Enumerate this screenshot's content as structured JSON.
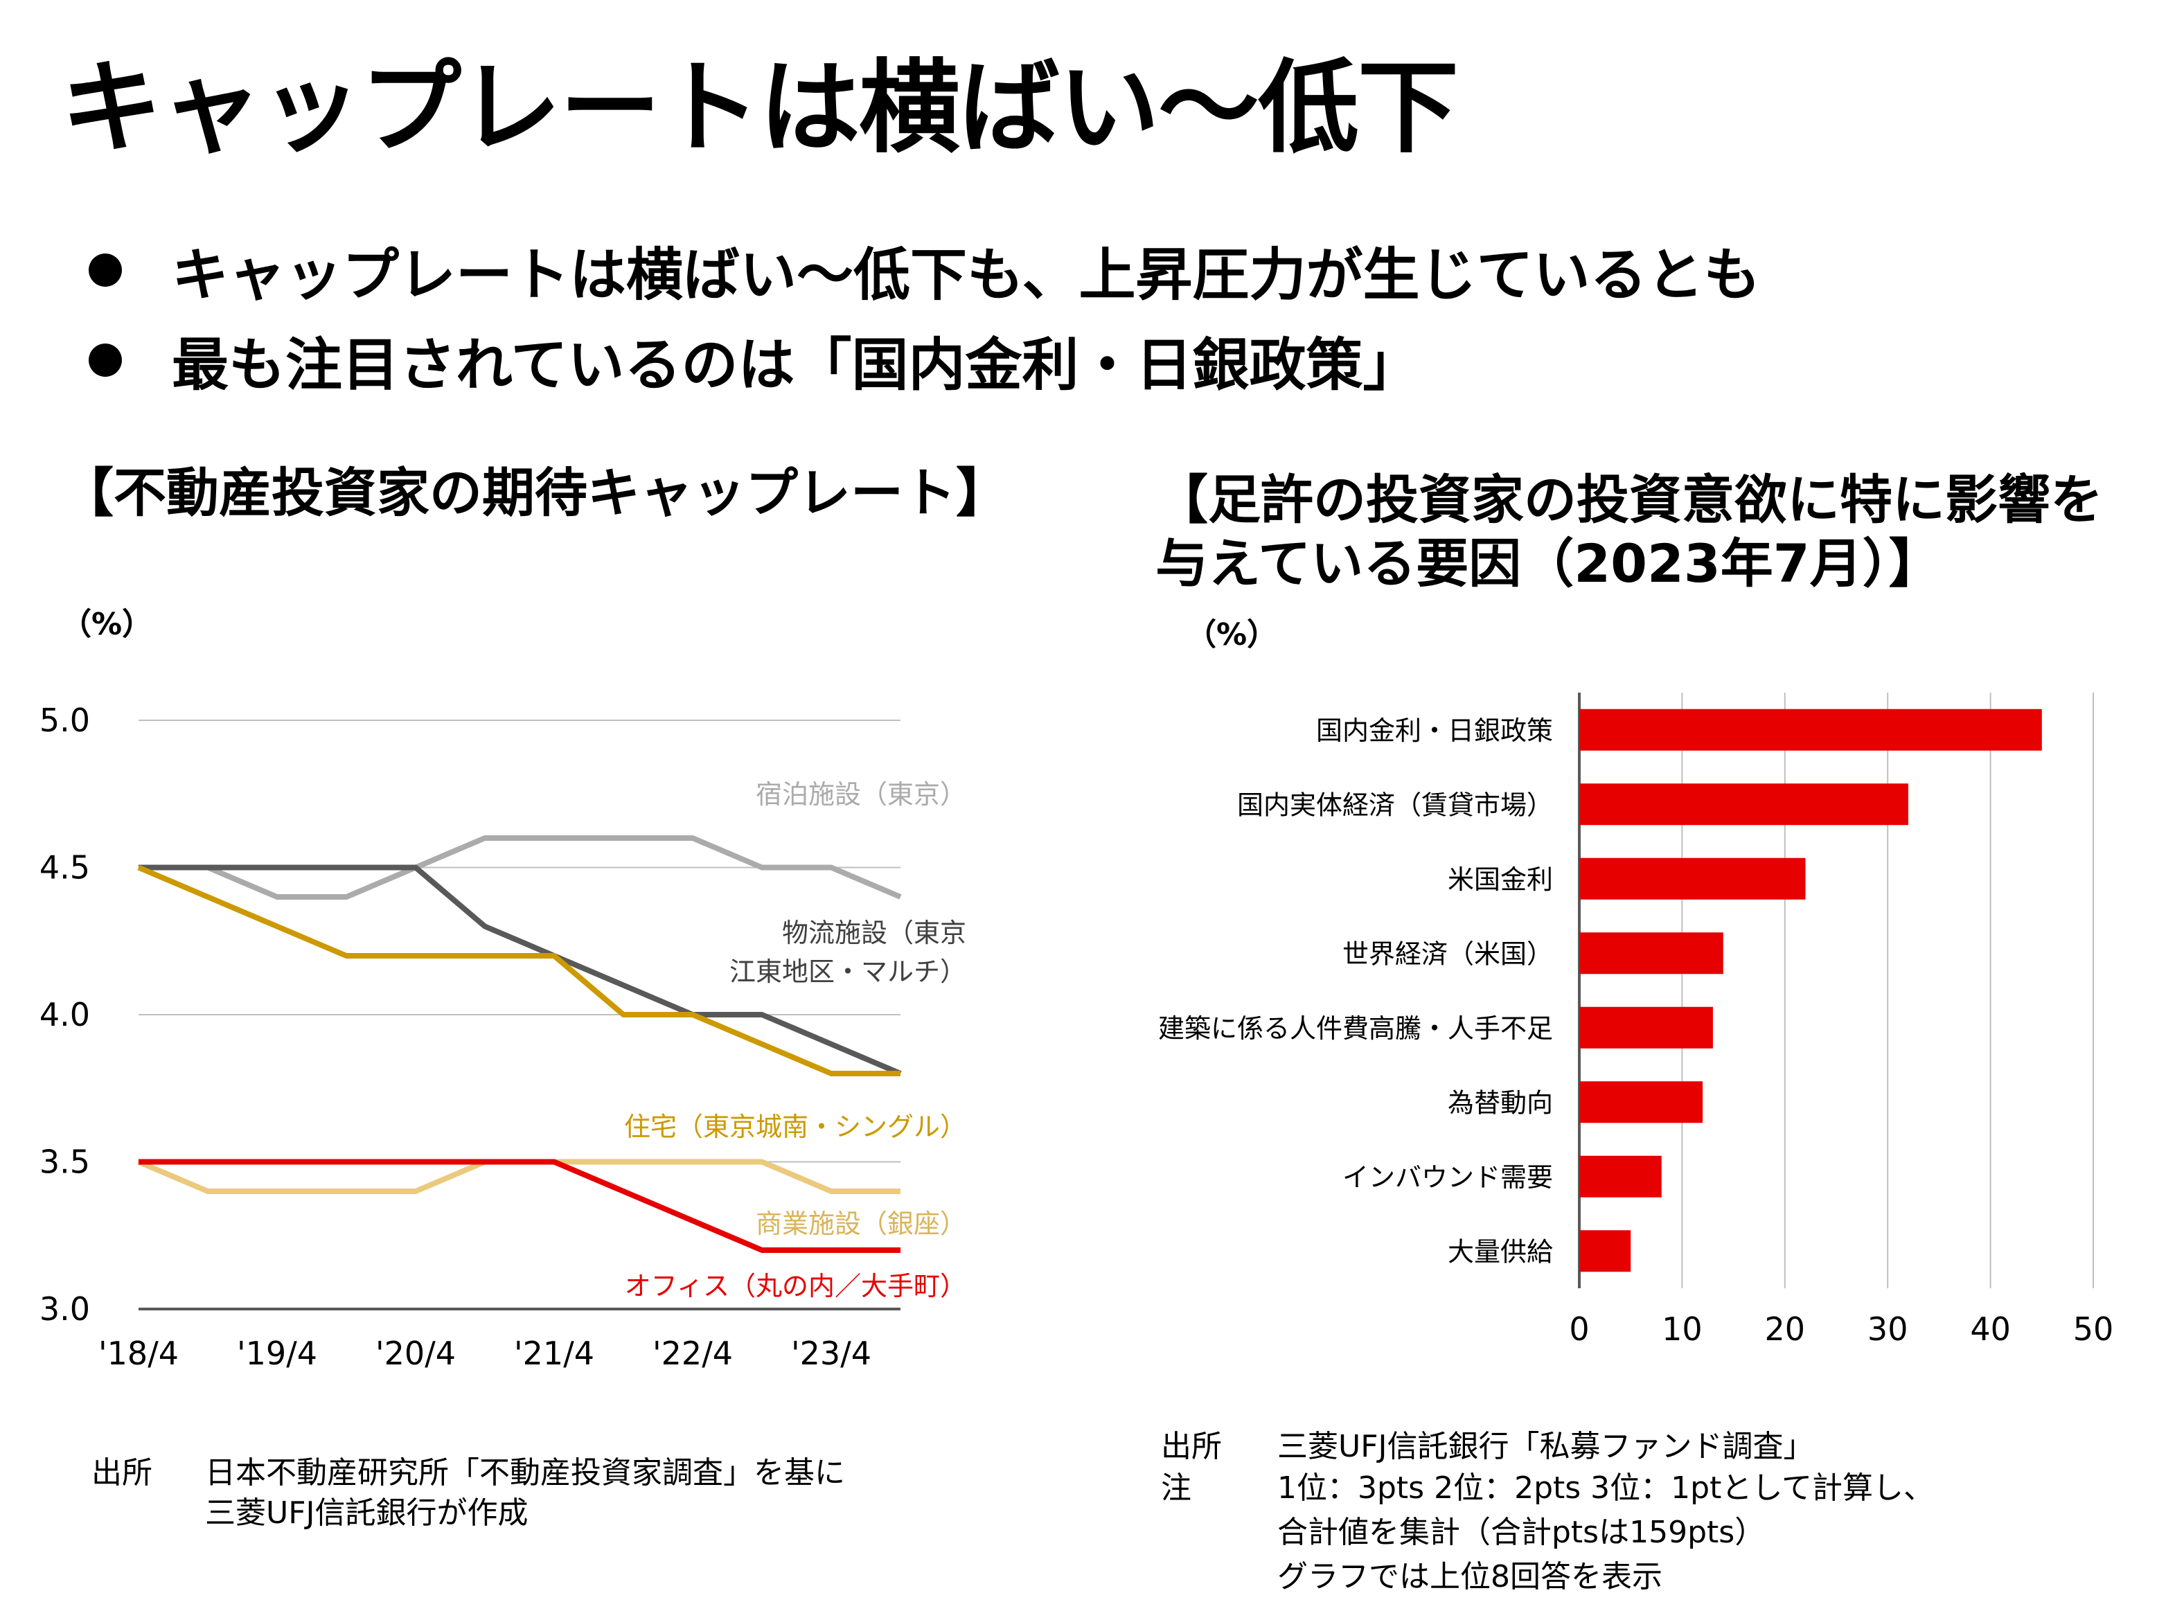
{
  "page": {
    "title": "キャップレートは横ばい～低下",
    "bullets": [
      "キャップレートは横ばい～低下も、上昇圧力が生じているとも",
      "最も注目されているのは「国内金利・日銀政策」"
    ]
  },
  "left_chart": {
    "section_title": "【不動産投資家の期待キャップレート】",
    "unit": "（%）",
    "source_label": "出所",
    "source_lines": [
      "日本不動産研究所「不動産投資家調査」を基に",
      "三菱UFJ信託銀行が作成"
    ]
  },
  "right_chart": {
    "section_title_lines": [
      "【足許の投資家の投資意欲に特に影響を",
      "与えている要因（2023年7月）】"
    ],
    "unit": "（%）",
    "source_label": "出所",
    "source_text": "三菱UFJ信託銀行「私募ファンド調査」",
    "note_label": "注",
    "note_lines": [
      "1位：3pts 2位：2pts 3位：1ptとして計算し、",
      "合計値を集計（合計ptsは159pts）",
      "グラフでは上位8回答を表示"
    ]
  },
  "chart_data": [
    {
      "type": "line",
      "title": "",
      "ylabel": "（%）",
      "ylim": [
        3.0,
        5.0
      ],
      "yticks": [
        "3.0",
        "3.5",
        "4.0",
        "4.5",
        "5.0"
      ],
      "x": [
        "'18/4",
        "'18/10",
        "'19/4",
        "'19/10",
        "'20/4",
        "'20/10",
        "'21/4",
        "'21/10",
        "'22/4",
        "'22/10",
        "'23/4",
        "'23/10"
      ],
      "xtick_labels": [
        "'18/4",
        "'19/4",
        "'20/4",
        "'21/4",
        "'22/4",
        "'23/4"
      ],
      "grid": true,
      "series": [
        {
          "name": "宿泊施設（東京）",
          "color": "#ababab",
          "values": [
            4.5,
            4.5,
            4.4,
            4.4,
            4.5,
            4.6,
            4.6,
            4.6,
            4.6,
            4.5,
            4.5,
            4.4
          ]
        },
        {
          "name_lines": [
            "物流施設（東京",
            "江東地区・マルチ）"
          ],
          "color": "#595959",
          "values": [
            4.5,
            4.5,
            4.5,
            4.5,
            4.5,
            4.3,
            4.2,
            4.1,
            4.0,
            4.0,
            3.9,
            3.8
          ]
        },
        {
          "name": "住宅（東京城南・シングル）",
          "color": "#cc9900",
          "values": [
            4.5,
            4.4,
            4.3,
            4.2,
            4.2,
            4.2,
            4.2,
            4.0,
            4.0,
            3.9,
            3.8,
            3.8
          ]
        },
        {
          "name": "商業施設（銀座）",
          "color": "#ebc97d",
          "values": [
            3.5,
            3.4,
            3.4,
            3.4,
            3.4,
            3.5,
            3.5,
            3.5,
            3.5,
            3.5,
            3.4,
            3.4
          ]
        },
        {
          "name": "オフィス（丸の内／大手町）",
          "color": "#e60000",
          "values": [
            3.5,
            3.5,
            3.5,
            3.5,
            3.5,
            3.5,
            3.5,
            3.4,
            3.3,
            3.2,
            3.2,
            3.2
          ]
        }
      ]
    },
    {
      "type": "bar",
      "orientation": "horizontal",
      "title": "",
      "xlim": [
        0,
        50
      ],
      "xticks": [
        "0",
        "10",
        "20",
        "30",
        "40",
        "50"
      ],
      "grid": true,
      "color": "#e60000",
      "categories": [
        "国内金利・日銀政策",
        "国内実体経済（賃貸市場）",
        "米国金利",
        "世界経済（米国）",
        "建築に係る人件費高騰・人手不足",
        "為替動向",
        "インバウンド需要",
        "大量供給"
      ],
      "values": [
        45,
        32,
        22,
        14,
        13,
        12,
        8,
        5
      ]
    }
  ]
}
